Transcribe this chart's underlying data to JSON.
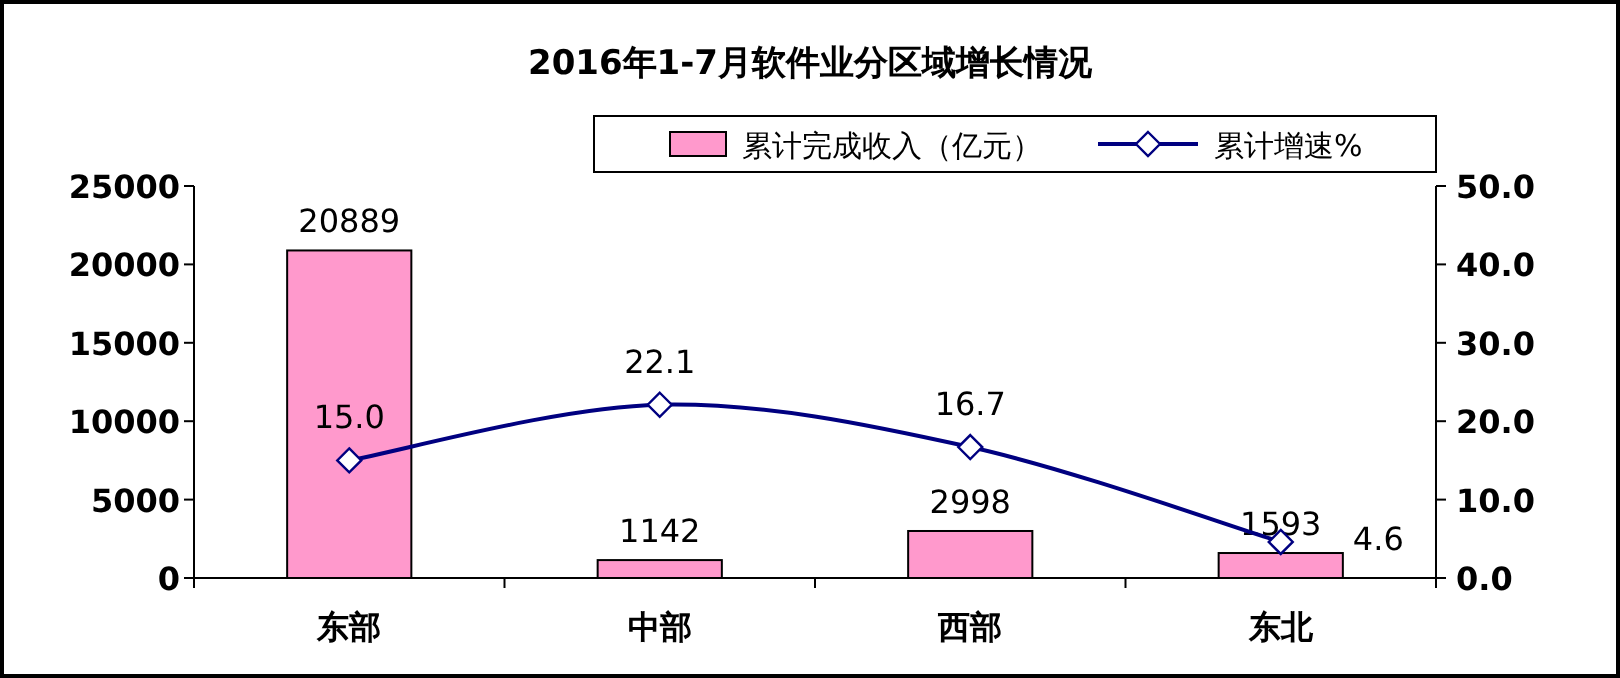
{
  "chart_data": {
    "type": "bar",
    "title": "2016年1-7月软件业分区域增长情况",
    "categories": [
      "东部",
      "中部",
      "西部",
      "东北"
    ],
    "series": [
      {
        "name": "累计完成收入（亿元）",
        "color": "#ff99cc",
        "values": [
          20889,
          1142,
          2998,
          1593
        ],
        "value_labels": [
          "20889",
          "1142",
          "2998",
          "1593"
        ]
      },
      {
        "name": "累计增速%",
        "type": "line",
        "axis": "y2",
        "color": "#000080",
        "values": [
          15.0,
          22.1,
          16.7,
          4.6
        ],
        "value_labels": [
          "15.0",
          "22.1",
          "16.7",
          "4.6"
        ]
      }
    ],
    "ylim": [
      0,
      25000
    ],
    "yticks": [
      0,
      5000,
      10000,
      15000,
      20000,
      25000
    ],
    "y2lim": [
      0,
      50
    ],
    "y2ticks": [
      {
        "value": 0,
        "label": "0.0"
      },
      {
        "value": 10,
        "label": "10.0"
      },
      {
        "value": 20,
        "label": "20.0"
      },
      {
        "value": 30,
        "label": "30.0"
      },
      {
        "value": 40,
        "label": "40.0"
      },
      {
        "value": 50,
        "label": "50.0"
      }
    ],
    "marker": "diamond",
    "legend": "top right"
  }
}
